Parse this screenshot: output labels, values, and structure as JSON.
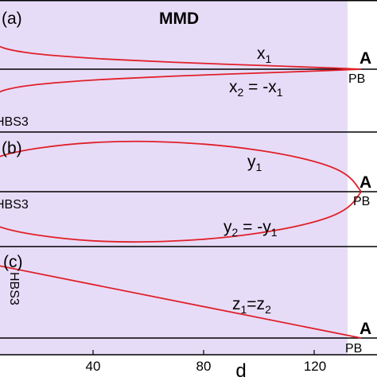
{
  "figure": {
    "title": "MMD",
    "x_axis_label": "d",
    "x_tick_labels": [
      "40",
      "80",
      "120"
    ]
  },
  "colors": {
    "shaded_region": "#e7dcf7",
    "curve": "#e0202a",
    "axis_line": "#000000"
  },
  "chart_data": [
    {
      "type": "line",
      "panel_label": "(a)",
      "xlim": [
        0,
        160
      ],
      "grid": false,
      "left_label": "HBS3",
      "right_labels": [
        "A",
        "PB"
      ],
      "annotations": [
        "x1",
        "x2 = -x1"
      ],
      "series": [
        {
          "name": "x1",
          "x": [
            0,
            5,
            10,
            20,
            40,
            60,
            80,
            100,
            120,
            130,
            137
          ],
          "y": [
            0.85,
            0.62,
            0.5,
            0.39,
            0.28,
            0.21,
            0.15,
            0.1,
            0.05,
            0.022,
            0.0
          ]
        },
        {
          "name": "x2 = -x1",
          "x": [
            0,
            5,
            10,
            20,
            40,
            60,
            80,
            100,
            120,
            130,
            137
          ],
          "y": [
            -0.85,
            -0.62,
            -0.5,
            -0.39,
            -0.28,
            -0.21,
            -0.15,
            -0.1,
            -0.05,
            -0.022,
            0.0
          ]
        }
      ]
    },
    {
      "type": "line",
      "panel_label": "(b)",
      "xlim": [
        0,
        160
      ],
      "grid": false,
      "left_label": "HBS3",
      "right_labels": [
        "A",
        "PB"
      ],
      "annotations": [
        "y1",
        "y2 = -y1"
      ],
      "series": [
        {
          "name": "y1",
          "x": [
            0,
            10,
            30,
            50,
            70,
            90,
            110,
            125,
            133,
            137
          ],
          "y": [
            0.55,
            0.76,
            0.92,
            0.98,
            0.96,
            0.88,
            0.72,
            0.52,
            0.3,
            0.0
          ]
        },
        {
          "name": "y2 = -y1",
          "x": [
            0,
            10,
            30,
            50,
            70,
            90,
            110,
            125,
            133,
            137
          ],
          "y": [
            -0.55,
            -0.76,
            -0.92,
            -0.98,
            -0.96,
            -0.88,
            -0.72,
            -0.52,
            -0.3,
            0.0
          ]
        }
      ]
    },
    {
      "type": "line",
      "panel_label": "(c)",
      "xlim": [
        0,
        160
      ],
      "grid": false,
      "left_label": "HBS3",
      "right_labels": [
        "A",
        "PB"
      ],
      "annotations": [
        "z1=z2"
      ],
      "series": [
        {
          "name": "z1=z2",
          "x": [
            0,
            137
          ],
          "y": [
            1.0,
            0.0
          ]
        }
      ]
    }
  ]
}
